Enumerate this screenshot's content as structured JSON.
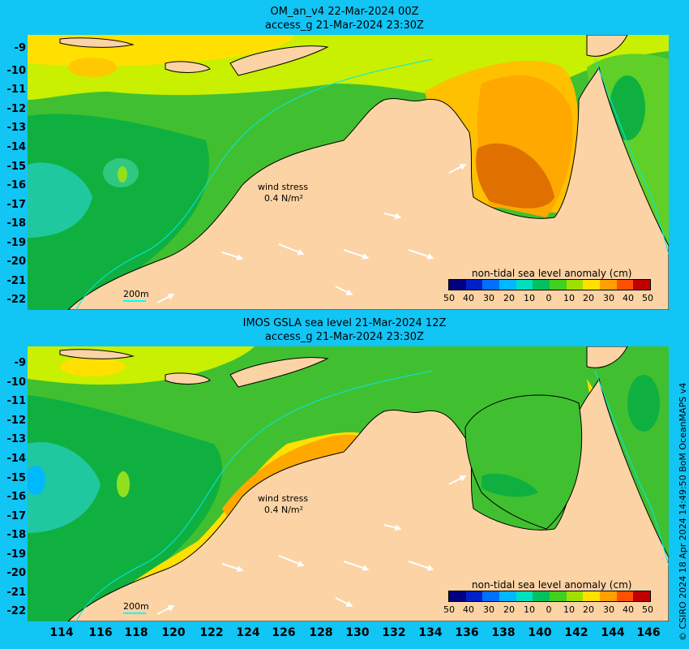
{
  "top": {
    "title1": "OM_an_v4  22-Mar-2024 00Z",
    "title2": "access_g 21-Mar-2024 23:30Z",
    "wind_label": "wind stress",
    "wind_value": "0.4 N/m²",
    "scale_label": "200m",
    "legend_title": "non-tidal sea level anomaly (cm)"
  },
  "bottom": {
    "title1": "IMOS GSLA sea level  21-Mar-2024 12Z",
    "title2": "access_g 21-Mar-2024 23:30Z",
    "wind_label": "wind stress",
    "wind_value": "0.4 N/m²",
    "scale_label": "200m",
    "legend_title": "non-tidal sea level anomaly (cm)"
  },
  "lat_labels": [
    "-9",
    "-10",
    "-11",
    "-12",
    "-13",
    "-14",
    "-15",
    "-16",
    "-17",
    "-18",
    "-19",
    "-20",
    "-21",
    "-22"
  ],
  "lon_labels": [
    "114",
    "116",
    "118",
    "120",
    "122",
    "124",
    "126",
    "128",
    "130",
    "132",
    "134",
    "136",
    "138",
    "140",
    "142",
    "144",
    "146"
  ],
  "legend_ticks": [
    "50",
    "40",
    "30",
    "20",
    "10",
    "0",
    "10",
    "20",
    "30",
    "40",
    "50"
  ],
  "legend_colors": [
    "#000080",
    "#0020c8",
    "#0070ff",
    "#00b8ff",
    "#00e0c0",
    "#00c060",
    "#40d020",
    "#a0e000",
    "#ffe000",
    "#ffa000",
    "#ff5000",
    "#c00000"
  ],
  "credit": "© CSIRO 2024   18 Apr 2024 14:49:50 BoM OceanMAPS v4",
  "colors": {
    "background": "#11c5f5",
    "land": "#fcd3a4",
    "deep_green": "#10b040",
    "green": "#40c030",
    "light_green": "#90e020",
    "yellow_green": "#c8f000",
    "yellow": "#ffe000",
    "orange": "#ffa800",
    "dark_orange": "#e07000",
    "teal": "#20c8a0"
  }
}
